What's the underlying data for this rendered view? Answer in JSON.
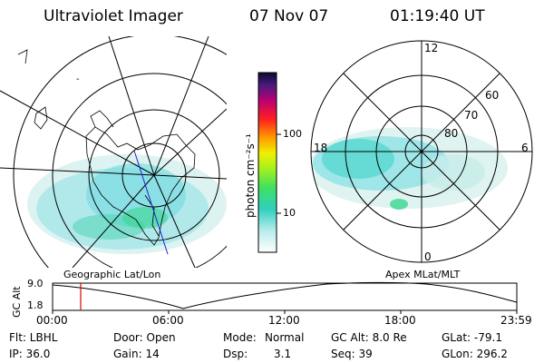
{
  "header": {
    "title": "Ultraviolet Imager",
    "date": "07 Nov 07",
    "time": "01:19:40 UT"
  },
  "colorbar": {
    "unit_label": "photon cm⁻²s⁻¹",
    "ticks": [
      "100",
      "10"
    ]
  },
  "left_panel": {
    "caption": "Geographic Lat/Lon"
  },
  "right_panel": {
    "caption": "Apex MLat/MLT",
    "mlt_labels": {
      "top": "12",
      "left": "18",
      "right": "6",
      "bottom": "0"
    },
    "lat_labels": [
      "60",
      "70",
      "80"
    ]
  },
  "altitude_plot": {
    "ylabel": "GC Alt",
    "yticks": [
      "9.0",
      "1.8"
    ],
    "xticks": [
      "00:00",
      "06:00",
      "12:00",
      "18:00",
      "23:59"
    ],
    "marker_color": "#e00000"
  },
  "footer": {
    "row1": {
      "flt": "Flt: LBHL",
      "door": "Door: Open",
      "mode_label": "Mode:",
      "mode_value": "Normal",
      "gcalt": "GC Alt: 8.0 Re",
      "glat": "GLat: -79.1"
    },
    "row2": {
      "ip": "IP: 36.0",
      "gain": "Gain: 14",
      "dsp_label": "Dsp:",
      "dsp_value": "3.1",
      "seq": "Seq: 39",
      "glon": "GLon: 296.2"
    }
  }
}
